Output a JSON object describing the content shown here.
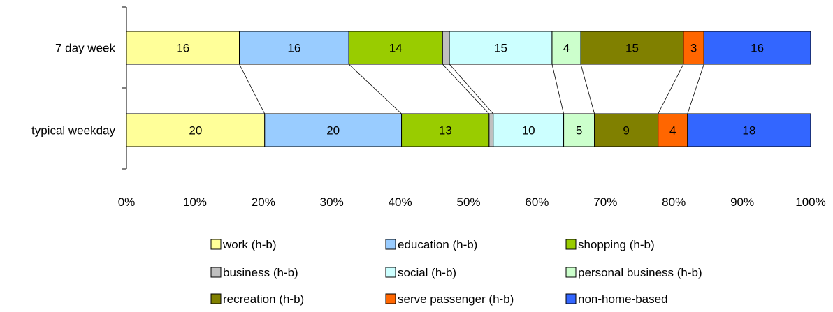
{
  "chart_data": {
    "type": "bar",
    "orientation": "horizontal",
    "stacked": true,
    "percent_stacked": true,
    "categories": [
      "7 day week",
      "typical weekday"
    ],
    "series": [
      {
        "name": "work (h-b)",
        "values": [
          16.5,
          20.2
        ],
        "labels": [
          "16",
          "20"
        ]
      },
      {
        "name": "education (h-b)",
        "values": [
          16.0,
          20.0
        ],
        "labels": [
          "16",
          "20"
        ]
      },
      {
        "name": "shopping (h-b)",
        "values": [
          13.7,
          12.8
        ],
        "labels": [
          "14",
          "13"
        ]
      },
      {
        "name": "business (h-b)",
        "values": [
          1.0,
          0.6
        ],
        "labels": [
          "",
          ""
        ]
      },
      {
        "name": "social (h-b)",
        "values": [
          15.0,
          10.3
        ],
        "labels": [
          "15",
          "10"
        ]
      },
      {
        "name": "personal business (h-b)",
        "values": [
          4.2,
          4.5
        ],
        "labels": [
          "4",
          "5"
        ]
      },
      {
        "name": "recreation (h-b)",
        "values": [
          15.0,
          9.3
        ],
        "labels": [
          "15",
          "9"
        ]
      },
      {
        "name": "serve passenger (h-b)",
        "values": [
          3.0,
          4.3
        ],
        "labels": [
          "3",
          "4"
        ]
      },
      {
        "name": "non-home-based",
        "values": [
          15.6,
          18.0
        ],
        "labels": [
          "16",
          "18"
        ]
      }
    ],
    "x_ticks": [
      "0%",
      "10%",
      "20%",
      "30%",
      "40%",
      "50%",
      "60%",
      "70%",
      "80%",
      "90%",
      "100%"
    ],
    "xlim": [
      0,
      100
    ],
    "series_lines": true,
    "legend_position": "bottom",
    "grid": false,
    "colors": [
      "#FFFF99",
      "#99CCFF",
      "#99CC00",
      "#C0C0C0",
      "#CCFFFF",
      "#CCFFCC",
      "#808000",
      "#FF6600",
      "#3366FF"
    ]
  }
}
